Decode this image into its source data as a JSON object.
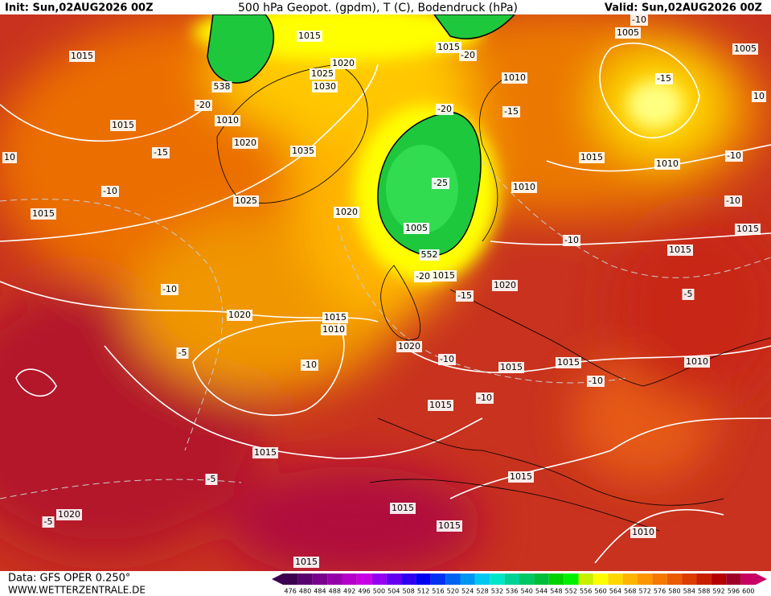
{
  "header": {
    "init": "Init: Sun,02AUG2026 00Z",
    "title": "500 hPa Geopot. (gpdm), T (C), Bodendruck (hPa)",
    "valid": "Valid: Sun,02AUG2026 00Z"
  },
  "footer": {
    "source": "Data: GFS OPER 0.250°",
    "site": "WWW.WETTERZENTRALE.DE"
  },
  "colorbar": {
    "labels": [
      476,
      480,
      484,
      488,
      492,
      496,
      500,
      504,
      508,
      512,
      516,
      520,
      524,
      528,
      532,
      536,
      540,
      544,
      548,
      552,
      556,
      560,
      564,
      568,
      572,
      576,
      580,
      584,
      588,
      592,
      596,
      600
    ],
    "colors": [
      "#3c0050",
      "#5a006e",
      "#78008c",
      "#9600aa",
      "#b400c8",
      "#c800e6",
      "#9600f0",
      "#6400f0",
      "#3200f0",
      "#0000f0",
      "#0032f0",
      "#0064f0",
      "#0096f0",
      "#00c8f0",
      "#00e6c8",
      "#00d296",
      "#00c864",
      "#00be3c",
      "#00d200",
      "#00f000",
      "#c8f000",
      "#ffff00",
      "#ffd700",
      "#ffb400",
      "#ff9600",
      "#f57800",
      "#eb5a00",
      "#dc3c00",
      "#c81e00",
      "#b40000",
      "#a00028",
      "#c80064"
    ]
  },
  "map_labels": [
    "1015",
    "1015",
    "1015",
    "1020",
    "1025",
    "1030",
    "1010",
    "1020",
    "1035",
    "1025",
    "1015",
    "1020",
    "1005",
    "552",
    "538",
    "1015",
    "-20",
    "1010",
    "1005",
    "-10",
    "1005",
    "-15",
    "1015",
    "1010",
    "-10",
    "-10",
    "1010",
    "-10",
    "1015",
    "1015",
    "-5",
    "1020",
    "1015",
    "-15",
    "-20",
    "-20",
    "-20",
    "-15",
    "-15",
    "-10",
    "-10",
    "1020",
    "1015",
    "1010",
    "-10",
    "-5",
    "1020",
    "-10",
    "1015",
    "1015",
    "-10",
    "1010",
    "1015",
    "-10",
    "-5",
    "1015",
    "1015",
    "1020",
    "-5",
    "1015",
    "1015",
    "1010",
    "1015",
    "-25",
    "10",
    "10"
  ]
}
